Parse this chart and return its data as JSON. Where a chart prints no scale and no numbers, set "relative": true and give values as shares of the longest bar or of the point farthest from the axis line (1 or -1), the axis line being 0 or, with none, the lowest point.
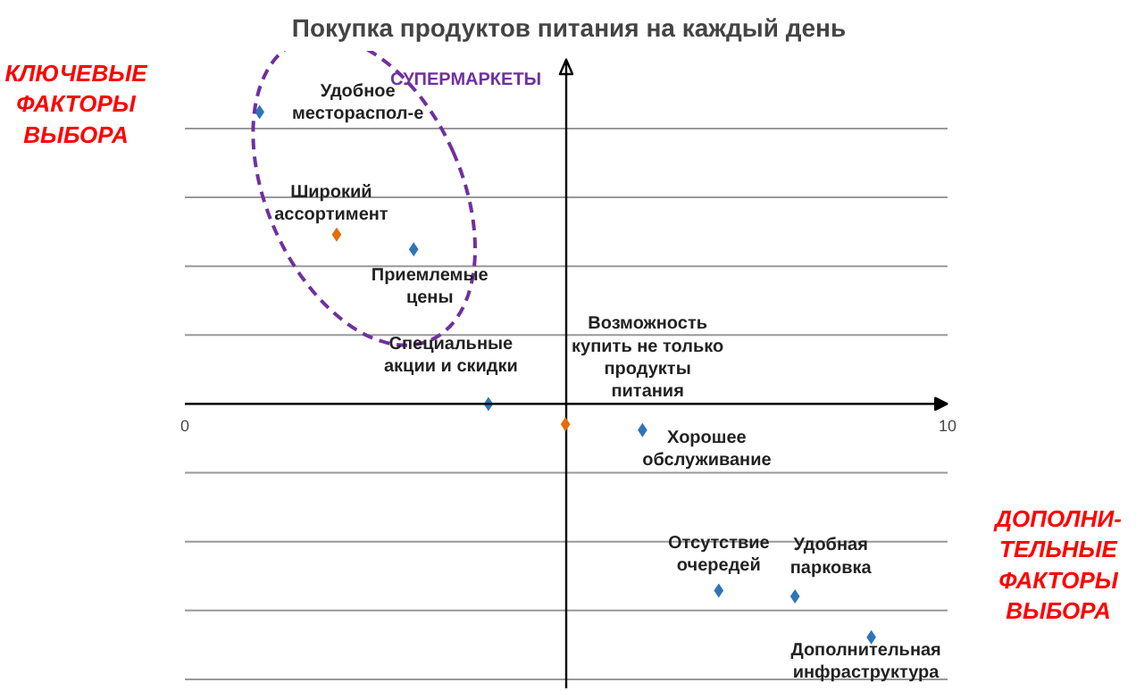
{
  "chart_data": {
    "type": "scatter",
    "title": "Покупка продуктов питания на каждый день",
    "relative": true,
    "marker": "diamond",
    "grid": "y",
    "xlim": [
      0,
      10
    ],
    "xticks": [
      0,
      10
    ],
    "ref_lines": [
      {
        "axis": "x",
        "value": 5,
        "color": "#000000"
      }
    ],
    "x": [
      0.98,
      1.99,
      3.0,
      3.98,
      4.99,
      6.0,
      7.0,
      8.0,
      9.0
    ],
    "values": [
      1,
      0.58,
      0.53,
      0,
      -0.07,
      -0.09,
      -0.64,
      -0.66,
      -0.8
    ],
    "colors": [
      "#2e75b6",
      "#e46c0a",
      "#2e75b6",
      "#2e75b6",
      "#e46c0a",
      "#2e75b6",
      "#2e75b6",
      "#2e75b6",
      "#2e75b6"
    ],
    "annotations": [
      {
        "text": "Удобное\nместораспол-е",
        "x": 0.98,
        "y": 1
      },
      {
        "text": "Широкий\nассортимент",
        "x": 1.99,
        "y": 0.58
      },
      {
        "text": "Приемлемые\nцены",
        "x": 3.0,
        "y": 0.53
      },
      {
        "text": "Специальные\nакции и скидки",
        "x": 3.98,
        "y": 0
      },
      {
        "text": "Возможность\nкупить не только\nпродукты\nпитания",
        "x": 4.99,
        "y": -0.07
      },
      {
        "text": "Хорошее\nобслуживание",
        "x": 6.0,
        "y": -0.09
      },
      {
        "text": "Отсутствие\nочередей",
        "x": 7.0,
        "y": -0.64
      },
      {
        "text": "Удобная\nпарковка",
        "x": 8.0,
        "y": -0.66
      },
      {
        "text": "Дополнительная\nинфраструктура",
        "x": 9.0,
        "y": -0.8
      },
      "СУПЕРМАРКЕТЫ",
      "КЛЮЧЕВЫЕ\nФАКТОРЫ\nВЫБОРА",
      "ДОПОЛНИ-\nТЕЛЬНЫЕ\nФАКТОРЫ\nВЫБОРА"
    ]
  }
}
